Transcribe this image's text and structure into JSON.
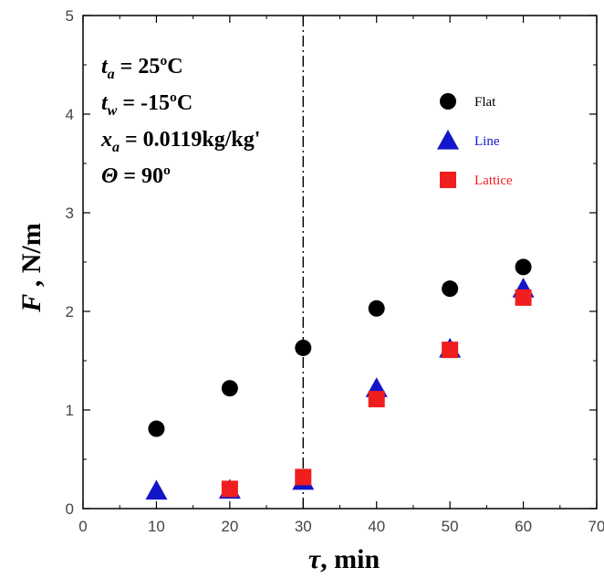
{
  "chart_data": {
    "type": "scatter",
    "xlabel": {
      "symbol": "τ",
      "rest": ", min"
    },
    "ylabel": {
      "symbol": "F",
      "rest": " , N/m"
    },
    "xlim": [
      0,
      70
    ],
    "ylim": [
      0,
      5
    ],
    "xticks": [
      "0",
      "10",
      "20",
      "30",
      "40",
      "50",
      "60",
      "70"
    ],
    "yticks": [
      "0",
      "1",
      "2",
      "3",
      "4",
      "5"
    ],
    "grid": false,
    "legend_position": "top-right",
    "vline_x": 30,
    "conditions": [
      {
        "sym": "t",
        "sub": "a",
        "val": " = 25ºC"
      },
      {
        "sym": "t",
        "sub": "w",
        "val": " = -15ºC"
      },
      {
        "sym": "x",
        "sub": "a",
        "val": " = 0.0119kg/kg'"
      },
      {
        "sym": "Θ",
        "sub": "",
        "val": " = 90º"
      }
    ],
    "series": [
      {
        "name": "Flat",
        "marker": "circle",
        "color": "#000000",
        "x": [
          10,
          20,
          30,
          40,
          50,
          60
        ],
        "y": [
          0.81,
          1.22,
          1.63,
          2.03,
          2.23,
          2.45
        ]
      },
      {
        "name": "Line",
        "marker": "triangle",
        "color": "#1414c8",
        "x": [
          10,
          20,
          30,
          40,
          50,
          60
        ],
        "y": [
          0.18,
          0.19,
          0.28,
          1.22,
          1.62,
          2.23
        ]
      },
      {
        "name": "Lattice",
        "marker": "square",
        "color": "#f01e1e",
        "x": [
          20,
          30,
          40,
          50,
          60
        ],
        "y": [
          0.2,
          0.32,
          1.11,
          1.61,
          2.14
        ]
      }
    ]
  }
}
